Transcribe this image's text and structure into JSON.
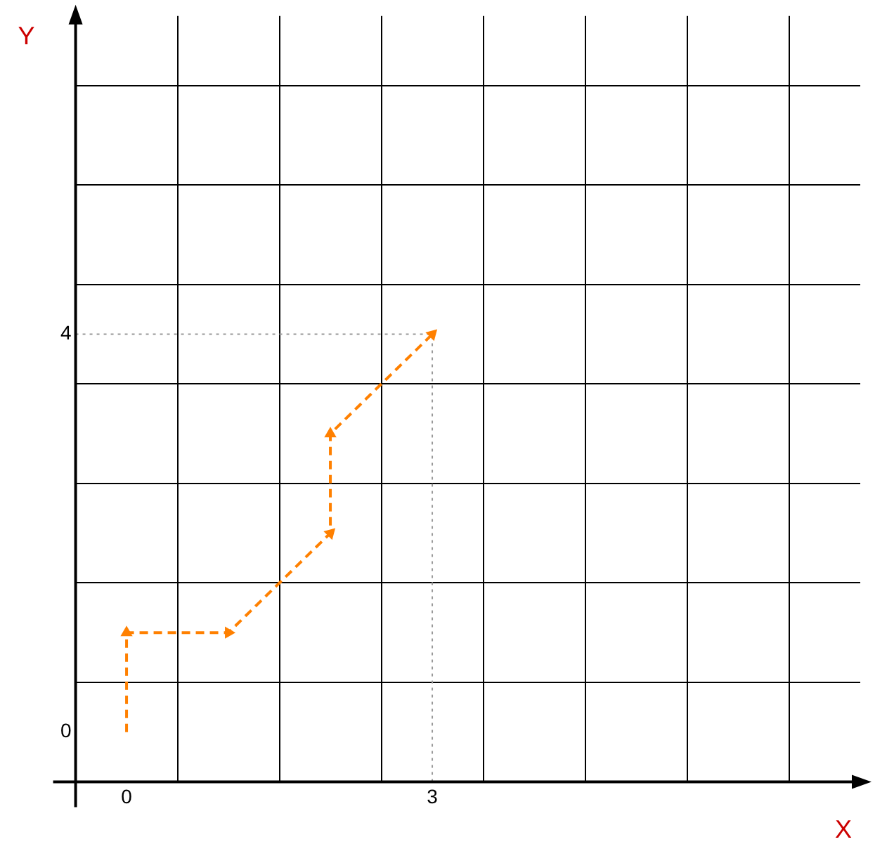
{
  "chart_data": {
    "type": "line",
    "xlabel": "X",
    "ylabel": "Y",
    "x": [
      0,
      0,
      1,
      2,
      2,
      3
    ],
    "series": [
      {
        "color": "#ff8000",
        "values": [
          0,
          1,
          1,
          2,
          3,
          4
        ]
      }
    ],
    "xlim": [
      -0.5,
      7.2
    ],
    "ylim": [
      -0.5,
      7.2
    ],
    "xticks": [
      0,
      {
        "value": 0.5,
        "label": null
      },
      {
        "value": 1.5,
        "label": null
      },
      {
        "value": 2.5,
        "label": null
      },
      3,
      {
        "value": 3.5,
        "label": null
      },
      {
        "value": 4.5,
        "label": null
      },
      {
        "value": 5.5,
        "label": null
      },
      {
        "value": 6.5,
        "label": null
      }
    ],
    "yticks": [
      0,
      {
        "value": 0.5,
        "label": null
      },
      {
        "value": 1.5,
        "label": null
      },
      {
        "value": 2.5,
        "label": null
      },
      {
        "value": 3.5,
        "label": null
      },
      4,
      {
        "value": 4.5,
        "label": null
      },
      {
        "value": 5.5,
        "label": null
      },
      {
        "value": 6.5,
        "label": null
      }
    ],
    "grid": true,
    "marker": "triangle",
    "line_style": "dashed",
    "legend": false,
    "ref_lines": [
      {
        "axis": "x",
        "value": 3,
        "color": "#999999",
        "line_style": "dotted"
      },
      {
        "axis": "y",
        "value": 4,
        "color": "#999999",
        "line_style": "dotted"
      }
    ]
  }
}
